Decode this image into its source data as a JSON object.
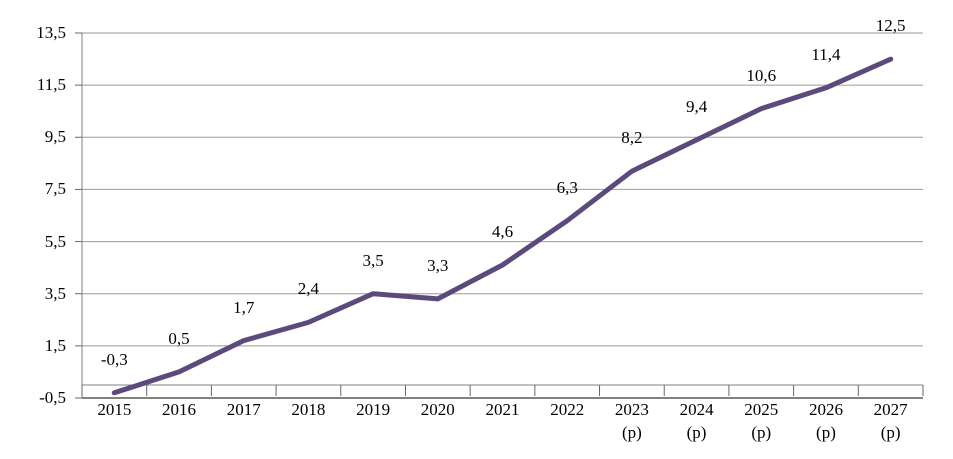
{
  "chart_data": {
    "type": "line",
    "title": "",
    "xlabel": "",
    "ylabel": "",
    "grid": true,
    "legend": null,
    "ylim": [
      -0.5,
      13.5
    ],
    "y_tick_step": 2,
    "categories": [
      "2015",
      "2016",
      "2017",
      "2018",
      "2019",
      "2020",
      "2021",
      "2022",
      "2023",
      "2024",
      "2025",
      "2026",
      "2027"
    ],
    "category_suffixes": [
      "",
      "",
      "",
      "",
      "",
      "",
      "",
      "",
      "(p)",
      "(p)",
      "(p)",
      "(p)",
      "(p)"
    ],
    "values": [
      -0.3,
      0.5,
      1.7,
      2.4,
      3.5,
      3.3,
      4.6,
      6.3,
      8.2,
      9.4,
      10.6,
      11.4,
      12.5
    ],
    "value_labels": [
      "-0,3",
      "0,5",
      "1,7",
      "2,4",
      "3,5",
      "3,3",
      "4,6",
      "6,3",
      "8,2",
      "9,4",
      "10,6",
      "11,4",
      "12,5"
    ],
    "y_ticks": [
      {
        "value": -0.5,
        "label": "-0,5"
      },
      {
        "value": 1.5,
        "label": "1,5"
      },
      {
        "value": 3.5,
        "label": "3,5"
      },
      {
        "value": 5.5,
        "label": "5,5"
      },
      {
        "value": 7.5,
        "label": "7,5"
      },
      {
        "value": 9.5,
        "label": "9,5"
      },
      {
        "value": 11.5,
        "label": "11,5"
      },
      {
        "value": 13.5,
        "label": "13,5"
      }
    ]
  },
  "colors": {
    "line": "#5B4A7B",
    "gridline": "#9B9B9B",
    "axis": "#808080",
    "bottom_line": "#595959",
    "tick": "#666666",
    "text": "#000000",
    "background": "#FFFFFF"
  }
}
